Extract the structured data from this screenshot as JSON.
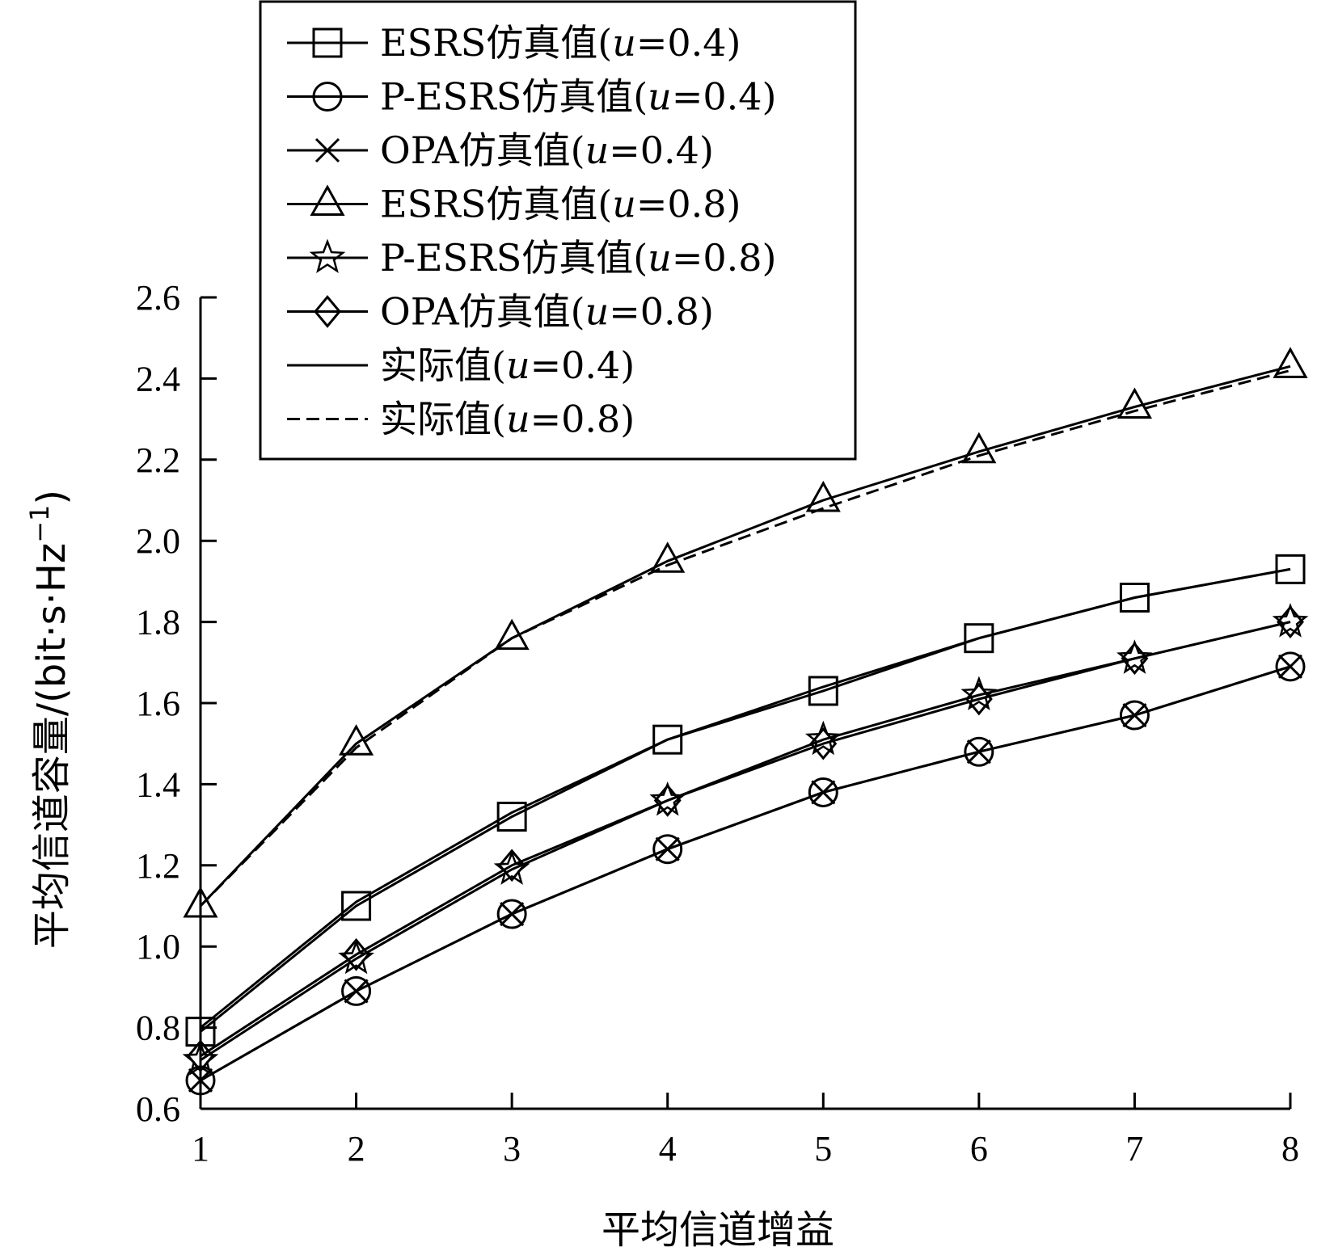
{
  "chart_data": {
    "type": "line",
    "xlabel": "平均信道增益",
    "ylabel": "平均信道容量/(bit·s·Hz",
    "ylabel_sup": "−1",
    "ylabel_close": ")",
    "xlim": [
      1,
      8
    ],
    "ylim": [
      0.6,
      2.6
    ],
    "x": [
      1,
      2,
      3,
      4,
      5,
      6,
      7,
      8
    ],
    "x_ticks": [
      "1",
      "2",
      "3",
      "4",
      "5",
      "6",
      "7",
      "8"
    ],
    "y_ticks": [
      "0.6",
      "0.8",
      "1.0",
      "1.2",
      "1.4",
      "1.6",
      "1.8",
      "2.0",
      "2.2",
      "2.4",
      "2.6"
    ],
    "y_tick_values": [
      0.6,
      0.8,
      1.0,
      1.2,
      1.4,
      1.6,
      1.8,
      2.0,
      2.2,
      2.4,
      2.6
    ],
    "grid": false,
    "legend_position": "top-left",
    "series": [
      {
        "name": "ESRS仿真值(",
        "var": "u",
        "param": "=0.4)",
        "marker": "square",
        "line": "solid",
        "values": [
          0.79,
          1.1,
          1.32,
          1.51,
          1.63,
          1.76,
          1.86,
          1.93
        ]
      },
      {
        "name": "P-ESRS仿真值(",
        "var": "u",
        "param": "=0.4)",
        "marker": "circle",
        "line": "solid",
        "values": [
          0.67,
          0.89,
          1.08,
          1.24,
          1.38,
          1.48,
          1.57,
          1.69
        ]
      },
      {
        "name": "OPA仿真值(",
        "var": "u",
        "param": "=0.4)",
        "marker": "x",
        "line": "solid",
        "values": [
          0.67,
          0.89,
          1.08,
          1.24,
          1.38,
          1.48,
          1.57,
          1.69
        ]
      },
      {
        "name": "ESRS仿真值(",
        "var": "u",
        "param": "=0.8)",
        "marker": "triangle",
        "line": "solid",
        "values": [
          1.1,
          1.5,
          1.76,
          1.95,
          2.1,
          2.22,
          2.33,
          2.43
        ]
      },
      {
        "name": "P-ESRS仿真值(",
        "var": "u",
        "param": "=0.8)",
        "marker": "star",
        "line": "solid",
        "values": [
          0.72,
          0.97,
          1.19,
          1.36,
          1.51,
          1.62,
          1.71,
          1.8
        ]
      },
      {
        "name": "OPA仿真值(",
        "var": "u",
        "param": "=0.8)",
        "marker": "diamond",
        "line": "solid",
        "values": [
          0.73,
          0.98,
          1.2,
          1.36,
          1.5,
          1.61,
          1.71,
          1.8
        ]
      },
      {
        "name": "实际值(",
        "var": "u",
        "param": "=0.4)",
        "marker": "none",
        "line": "solid",
        "values": [
          0.8,
          1.11,
          1.33,
          1.51,
          1.64,
          1.76,
          1.86,
          1.93
        ]
      },
      {
        "name": "实际值(",
        "var": "u",
        "param": "=0.8)",
        "marker": "none",
        "line": "dashed",
        "values": [
          1.1,
          1.49,
          1.76,
          1.94,
          2.08,
          2.21,
          2.32,
          2.42
        ]
      }
    ]
  }
}
